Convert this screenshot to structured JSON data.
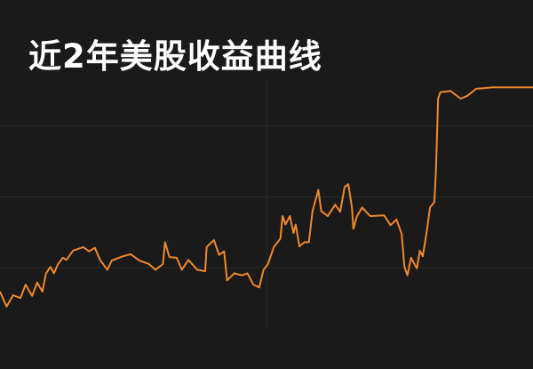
{
  "chart_data": {
    "type": "line",
    "title": "近2年美股收益曲线",
    "xlabel": "",
    "ylabel": "",
    "grid": true,
    "legend": "none",
    "colors": {
      "background": "#1a1a1a",
      "line": "#f0892a",
      "grid": "#2b2b2b",
      "title": "#ffffff"
    },
    "series": [
      {
        "x": [
          0,
          9,
          18,
          28,
          35,
          44,
          51,
          58,
          63,
          69,
          74,
          79,
          86,
          91,
          100,
          114,
          122,
          130,
          137,
          147,
          153,
          168,
          179,
          191,
          204,
          213,
          223,
          226,
          232,
          242,
          249,
          258,
          270,
          281,
          283,
          293,
          300,
          307,
          311,
          321,
          331,
          339,
          347,
          355,
          361,
          367,
          375,
          384,
          387,
          391,
          397,
          402,
          405,
          410,
          417,
          423,
          428,
          436,
          440,
          449,
          459,
          466,
          472,
          477,
          482,
          484,
          489,
          496,
          507,
          526,
          535,
          543,
          550,
          554,
          558,
          563,
          571,
          575,
          579,
          584,
          589,
          595,
          597,
          600,
          603,
          617,
          631,
          640,
          652,
          675,
          730
        ],
        "y": [
          -3.4,
          -5.5,
          -3.9,
          -4.3,
          -2.4,
          -4.0,
          -2.1,
          -3.4,
          -0.8,
          0.1,
          -0.8,
          0.4,
          1.4,
          1.1,
          2.4,
          2.9,
          2.3,
          2.8,
          1.1,
          -0.3,
          1.0,
          1.6,
          1.9,
          1.0,
          0.5,
          -0.3,
          0.5,
          3.6,
          1.5,
          1.4,
          -0.3,
          1.1,
          -0.3,
          -0.5,
          2.9,
          3.9,
          1.8,
          2.3,
          -1.8,
          -0.8,
          -1.1,
          -0.8,
          -2.4,
          -2.8,
          -0.3,
          0.5,
          2.9,
          4.1,
          7.3,
          6.1,
          7.3,
          4.9,
          6.1,
          3.0,
          3.6,
          3.6,
          8.0,
          11.0,
          8.0,
          7.3,
          8.9,
          7.9,
          11.4,
          11.8,
          8.5,
          5.5,
          7.3,
          8.5,
          7.3,
          7.4,
          6.0,
          6.8,
          4.8,
          0.1,
          -1.1,
          1.4,
          -0.1,
          2.4,
          1.6,
          4.8,
          8.5,
          9.3,
          13.6,
          23.9,
          24.8,
          25.0,
          23.9,
          24.3,
          25.3,
          25.5,
          25.5
        ]
      }
    ],
    "gridlines_y": [
      0,
      10,
      20
    ],
    "gridlines_x": [
      365
    ]
  }
}
